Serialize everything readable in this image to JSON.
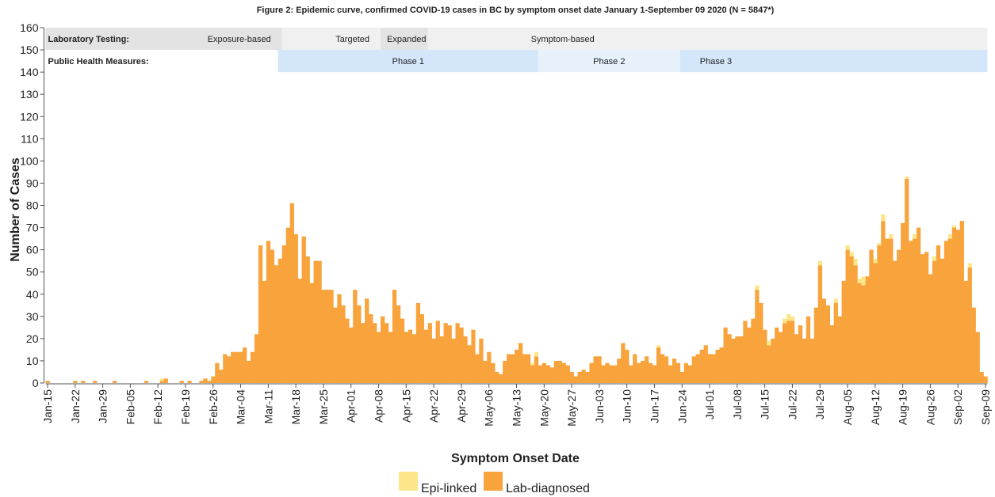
{
  "chart_data": {
    "type": "stacked_bar",
    "title": "Figure 2: Epidemic curve, confirmed COVID-19 cases in BC by symptom onset date January 1-September 09 2020 (N = 5847*)",
    "x_label": "Symptom Onset Date",
    "y_label": "Number of Cases",
    "testing_label": "Laboratory Testing:",
    "testing_phases": [
      "Exposure-based",
      "Targeted",
      "Expanded",
      "Symptom-based"
    ],
    "measures_label": "Public Health Measures:",
    "measures_phases": [
      "Phase 1",
      "Phase 2",
      "Phase 3"
    ],
    "categories": [
      "Jan-15",
      null,
      null,
      null,
      null,
      null,
      null,
      "Jan-22",
      null,
      null,
      null,
      null,
      null,
      null,
      "Jan-29",
      null,
      null,
      null,
      null,
      null,
      null,
      "Feb-05",
      null,
      null,
      null,
      null,
      null,
      null,
      "Feb-12",
      null,
      null,
      null,
      null,
      null,
      null,
      "Feb-19",
      null,
      null,
      null,
      null,
      null,
      null,
      "Feb-26",
      null,
      null,
      null,
      null,
      null,
      null,
      "Mar-04",
      null,
      null,
      null,
      null,
      null,
      null,
      "Mar-11",
      null,
      null,
      null,
      null,
      null,
      null,
      "Mar-18",
      null,
      null,
      null,
      null,
      null,
      null,
      "Mar-25",
      null,
      null,
      null,
      null,
      null,
      null,
      "Apr-01",
      null,
      null,
      null,
      null,
      null,
      null,
      "Apr-08",
      null,
      null,
      null,
      null,
      null,
      null,
      "Apr-15",
      null,
      null,
      null,
      null,
      null,
      null,
      "Apr-22",
      null,
      null,
      null,
      null,
      null,
      null,
      "Apr-29",
      null,
      null,
      null,
      null,
      null,
      null,
      "May-06",
      null,
      null,
      null,
      null,
      null,
      null,
      "May-13",
      null,
      null,
      null,
      null,
      null,
      null,
      "May-20",
      null,
      null,
      null,
      null,
      null,
      null,
      "May-27",
      null,
      null,
      null,
      null,
      null,
      null,
      "Jun-03",
      null,
      null,
      null,
      null,
      null,
      null,
      "Jun-10",
      null,
      null,
      null,
      null,
      null,
      null,
      "Jun-17",
      null,
      null,
      null,
      null,
      null,
      null,
      "Jun-24",
      null,
      null,
      null,
      null,
      null,
      null,
      "Jul-01",
      null,
      null,
      null,
      null,
      null,
      null,
      "Jul-08",
      null,
      null,
      null,
      null,
      null,
      null,
      "Jul-15",
      null,
      null,
      null,
      null,
      null,
      null,
      "Jul-22",
      null,
      null,
      null,
      null,
      null,
      null,
      "Jul-29",
      null,
      null,
      null,
      null,
      null,
      null,
      "Aug-05",
      null,
      null,
      null,
      null,
      null,
      null,
      "Aug-12",
      null,
      null,
      null,
      null,
      null,
      null,
      "Aug-19",
      null,
      null,
      null,
      null,
      null,
      null,
      "Aug-26",
      null,
      null,
      null,
      null,
      null,
      null,
      "Sep-02",
      null,
      null,
      null,
      null,
      null,
      null,
      "Sep-09"
    ],
    "series": [
      {
        "name": "Lab-diagnosed",
        "color": "#f8a33c",
        "values": [
          1,
          0,
          0,
          0,
          0,
          0,
          0,
          1,
          0,
          1,
          0,
          0,
          1,
          0,
          0,
          0,
          0,
          1,
          0,
          0,
          0,
          0,
          0,
          0,
          0,
          1,
          0,
          0,
          0,
          1,
          2,
          0,
          0,
          0,
          1,
          0,
          1,
          0,
          0,
          1,
          2,
          1,
          3,
          9,
          6,
          13,
          12,
          14,
          14,
          14,
          16,
          10,
          14,
          22,
          62,
          46,
          64,
          60,
          53,
          56,
          62,
          70,
          81,
          67,
          47,
          66,
          57,
          45,
          55,
          55,
          42,
          42,
          42,
          34,
          40,
          35,
          29,
          25,
          42,
          35,
          27,
          38,
          31,
          27,
          23,
          30,
          27,
          23,
          42,
          35,
          29,
          23,
          24,
          22,
          36,
          31,
          24,
          27,
          20,
          28,
          21,
          27,
          26,
          20,
          27,
          25,
          21,
          17,
          24,
          13,
          20,
          10,
          14,
          9,
          5,
          4,
          10,
          13,
          13,
          15,
          18,
          13,
          13,
          8,
          12,
          8,
          9,
          8,
          7,
          10,
          10,
          9,
          8,
          5,
          3,
          5,
          6,
          5,
          9,
          12,
          12,
          8,
          9,
          8,
          8,
          11,
          18,
          15,
          8,
          13,
          9,
          10,
          12,
          9,
          8,
          16,
          13,
          12,
          8,
          11,
          9,
          5,
          9,
          8,
          12,
          13,
          15,
          17,
          13,
          13,
          15,
          16,
          25,
          22,
          20,
          21,
          21,
          28,
          25,
          29,
          42,
          36,
          24,
          17,
          20,
          25,
          23,
          27,
          28,
          28,
          22,
          26,
          20,
          30,
          20,
          34,
          53,
          38,
          35,
          26,
          36,
          30,
          46,
          60,
          57,
          53,
          45,
          44,
          48,
          60,
          54,
          62,
          73,
          65,
          65,
          55,
          60,
          72,
          92,
          64,
          65,
          70,
          58,
          59,
          49,
          55,
          62,
          56,
          64,
          65,
          70,
          69,
          73,
          46,
          52,
          34,
          23,
          5,
          3
        ]
      },
      {
        "name": "Epi-linked",
        "color": "#fde58a",
        "values": [
          0,
          0,
          0,
          0,
          0,
          0,
          0,
          0,
          0,
          0,
          0,
          0,
          0,
          0,
          0,
          0,
          0,
          0,
          0,
          0,
          0,
          0,
          0,
          0,
          0,
          0,
          0,
          0,
          0,
          1,
          0,
          0,
          0,
          0,
          0,
          0,
          0,
          0,
          0,
          0,
          0,
          0,
          0,
          0,
          0,
          0,
          0,
          0,
          0,
          0,
          0,
          0,
          0,
          0,
          0,
          0,
          0,
          0,
          0,
          0,
          0,
          0,
          0,
          0,
          0,
          0,
          0,
          0,
          0,
          0,
          0,
          0,
          0,
          0,
          0,
          0,
          0,
          0,
          0,
          0,
          0,
          0,
          0,
          0,
          0,
          0,
          0,
          0,
          0,
          0,
          0,
          0,
          0,
          0,
          0,
          0,
          0,
          0,
          0,
          0,
          0,
          0,
          0,
          0,
          0,
          0,
          0,
          0,
          0,
          0,
          0,
          0,
          0,
          0,
          0,
          0,
          0,
          0,
          0,
          0,
          0,
          0,
          0,
          1,
          2,
          0,
          0,
          0,
          0,
          0,
          0,
          0,
          0,
          0,
          0,
          0,
          0,
          0,
          0,
          0,
          0,
          0,
          0,
          0,
          0,
          0,
          0,
          0,
          0,
          0,
          0,
          0,
          0,
          0,
          0,
          1,
          0,
          0,
          0,
          0,
          0,
          0,
          0,
          0,
          0,
          0,
          0,
          0,
          0,
          0,
          0,
          0,
          0,
          0,
          0,
          0,
          0,
          0,
          0,
          0,
          2,
          0,
          0,
          2,
          0,
          0,
          0,
          2,
          3,
          2,
          0,
          0,
          0,
          0,
          0,
          0,
          2,
          0,
          0,
          0,
          2,
          0,
          0,
          2,
          2,
          3,
          2,
          4,
          0,
          0,
          2,
          1,
          3,
          0,
          2,
          0,
          0,
          0,
          1,
          0,
          2,
          0,
          0,
          0,
          0,
          2,
          0,
          0,
          0,
          2,
          1,
          0,
          0,
          0,
          2,
          0,
          0,
          0,
          0
        ]
      }
    ],
    "ylim": [
      0,
      160
    ],
    "yticks": [
      0,
      10,
      20,
      30,
      40,
      50,
      60,
      70,
      80,
      90,
      100,
      110,
      120,
      130,
      140,
      150,
      160
    ]
  }
}
